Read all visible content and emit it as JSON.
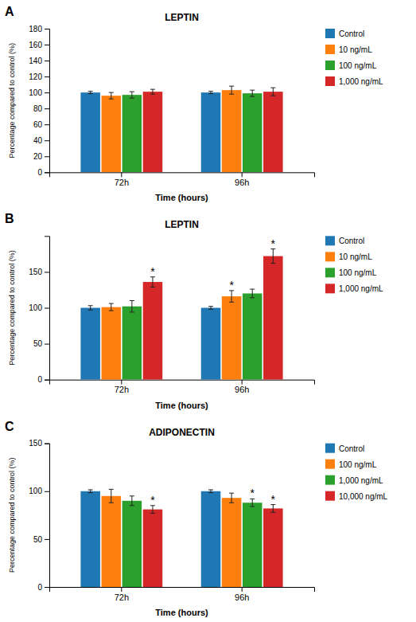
{
  "chart_data": [
    {
      "type": "bar",
      "panel_label": "A",
      "title": "LEPTIN",
      "xlabel": "Time (hours)",
      "ylabel": "Percentage compared to control (%)",
      "categories": [
        "72h",
        "96h"
      ],
      "series": [
        {
          "name": "Control",
          "values": [
            100,
            100
          ],
          "errors": [
            1.5,
            1.5
          ]
        },
        {
          "name": "10 ng/mL",
          "values": [
            96,
            103
          ],
          "errors": [
            4,
            5
          ]
        },
        {
          "name": "100 ng/mL",
          "values": [
            97,
            99
          ],
          "errors": [
            4,
            4
          ]
        },
        {
          "name": "1,000 ng/mL",
          "values": [
            101,
            101
          ],
          "errors": [
            3,
            5
          ]
        }
      ],
      "ylim": [
        0,
        180
      ],
      "yticks": [
        0,
        20,
        40,
        60,
        80,
        100,
        120,
        140,
        160,
        180
      ],
      "grid": false,
      "legend": "right",
      "annotations": []
    },
    {
      "type": "bar",
      "panel_label": "B",
      "title": "LEPTIN",
      "xlabel": "Time (hours)",
      "ylabel": "Percentage compared to control (%)",
      "categories": [
        "72h",
        "96h"
      ],
      "series": [
        {
          "name": "Control",
          "values": [
            100,
            100
          ],
          "errors": [
            3,
            2
          ]
        },
        {
          "name": "10 ng/mL",
          "values": [
            101,
            116
          ],
          "errors": [
            5,
            8
          ]
        },
        {
          "name": "100 ng/mL",
          "values": [
            102,
            120
          ],
          "errors": [
            8,
            6
          ]
        },
        {
          "name": "1,000 ng/mL",
          "values": [
            136,
            172
          ],
          "errors": [
            7,
            10
          ]
        }
      ],
      "ylim": [
        0,
        200
      ],
      "yticks": [
        0,
        50,
        100,
        150
      ],
      "grid": false,
      "legend": "right",
      "annotations": [
        {
          "text": "*",
          "category": "72h",
          "series": "1,000 ng/mL"
        },
        {
          "text": "*",
          "category": "96h",
          "series": "10 ng/mL"
        },
        {
          "text": "*",
          "category": "96h",
          "series": "1,000 ng/mL"
        }
      ]
    },
    {
      "type": "bar",
      "panel_label": "C",
      "title": "ADIPONECTIN",
      "xlabel": "Time (hours)",
      "ylabel": "Percentage compared to control (%)",
      "categories": [
        "72h",
        "96h"
      ],
      "series": [
        {
          "name": "Control",
          "values": [
            100,
            100
          ],
          "errors": [
            1.5,
            1.5
          ]
        },
        {
          "name": "100 ng/mL",
          "values": [
            95,
            93
          ],
          "errors": [
            7,
            5
          ]
        },
        {
          "name": "1,000 ng/mL",
          "values": [
            90,
            88
          ],
          "errors": [
            5,
            4
          ]
        },
        {
          "name": "10,000 ng/mL",
          "values": [
            81,
            82
          ],
          "errors": [
            4,
            4
          ]
        }
      ],
      "ylim": [
        0,
        150
      ],
      "yticks": [
        0,
        50,
        100,
        150
      ],
      "grid": false,
      "legend": "right",
      "annotations": [
        {
          "text": "*",
          "category": "72h",
          "series": "10,000 ng/mL"
        },
        {
          "text": "*",
          "category": "96h",
          "series": "1,000 ng/mL"
        },
        {
          "text": "*",
          "category": "96h",
          "series": "10,000 ng/mL"
        }
      ]
    }
  ]
}
